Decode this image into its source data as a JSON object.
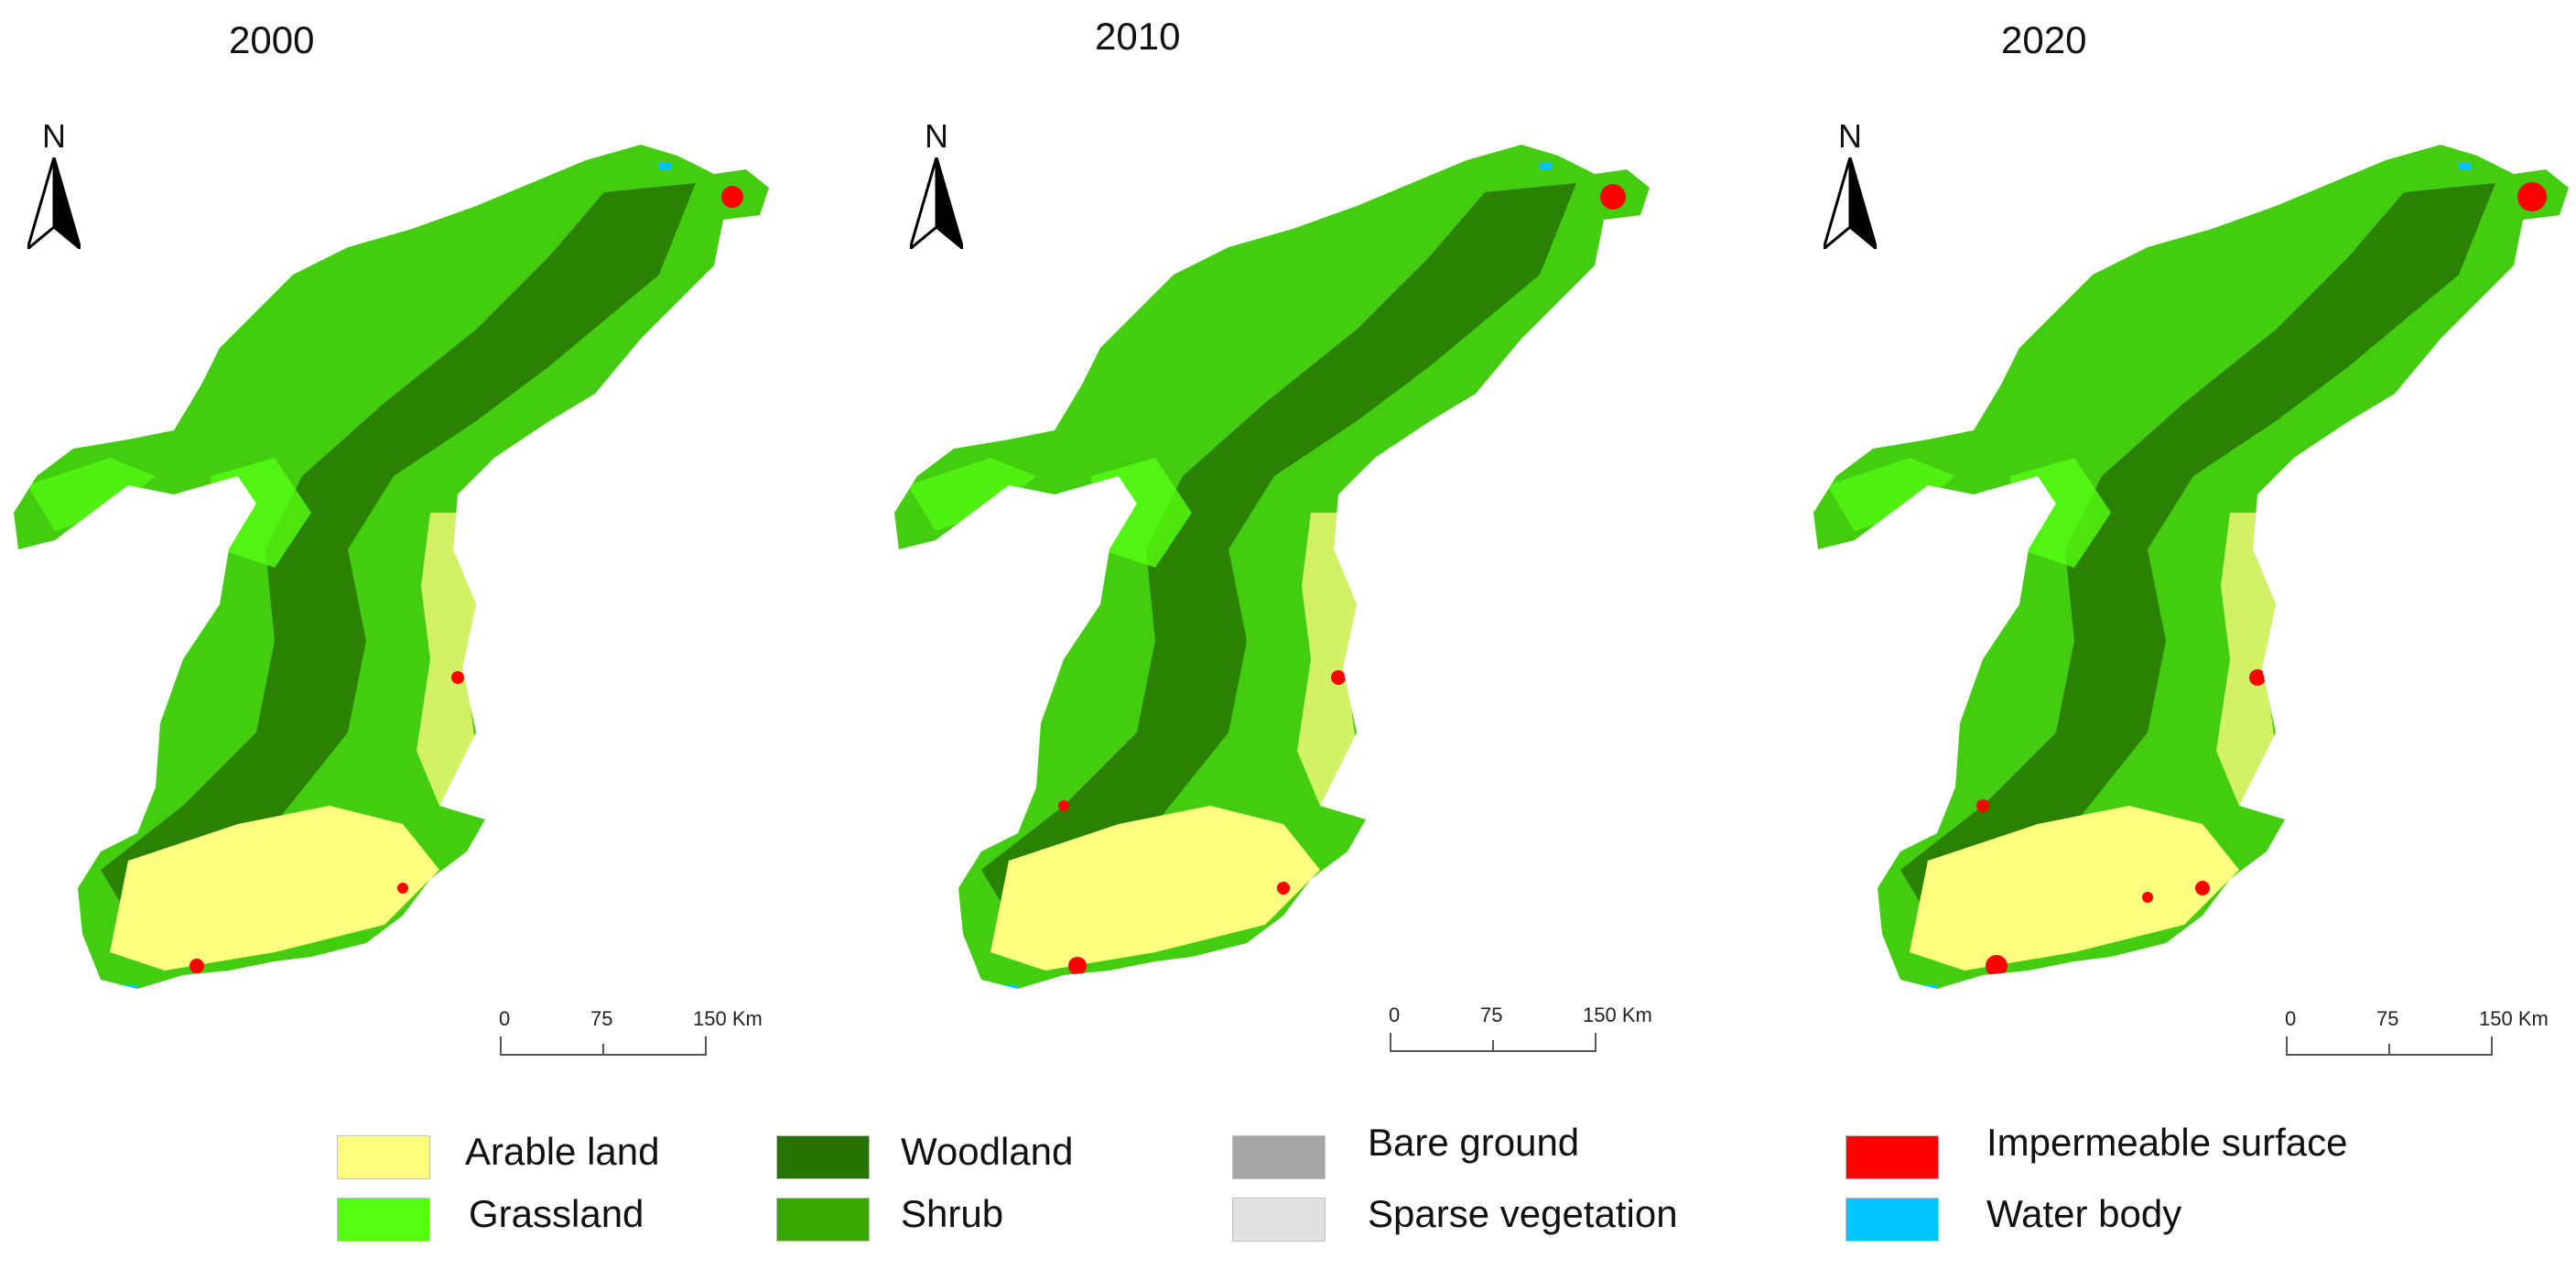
{
  "panels": [
    {
      "year": "2000"
    },
    {
      "year": "2010"
    },
    {
      "year": "2020"
    }
  ],
  "north_label": "N",
  "scale_bar": {
    "ticks": [
      "0",
      "75",
      "150 Km"
    ]
  },
  "legend": [
    {
      "label": "Arable land",
      "color": "#ffff80"
    },
    {
      "label": "Grassland",
      "color": "#55ff11"
    },
    {
      "label": "Woodland",
      "color": "#267300"
    },
    {
      "label": "Shrub",
      "color": "#38a800"
    },
    {
      "label": "Bare ground",
      "color": "#a6a6a6"
    },
    {
      "label": "Sparse vegetation",
      "color": "#e0e0e0"
    },
    {
      "label": "Impermeable surface",
      "color": "#ff0000"
    },
    {
      "label": "Water body",
      "color": "#00c5ff"
    }
  ]
}
